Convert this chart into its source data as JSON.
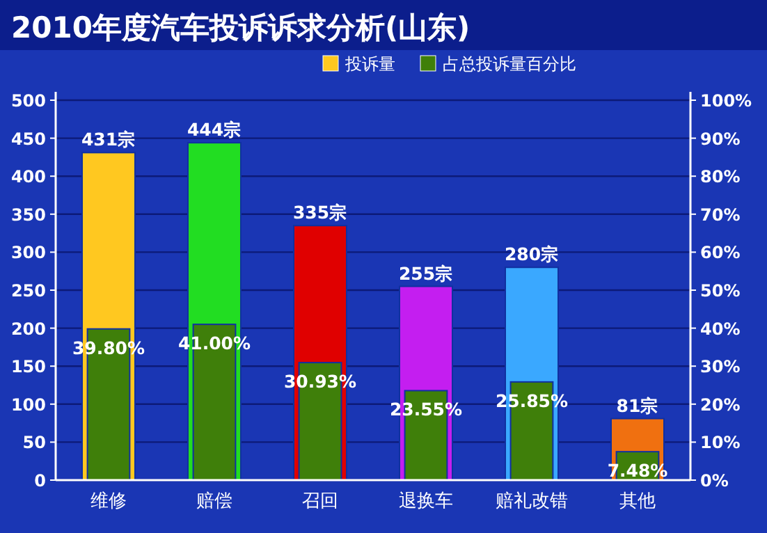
{
  "chart_data": {
    "type": "bar",
    "title": "2010年度汽车投诉诉求分析(山东)",
    "categories": [
      "维修",
      "赔偿",
      "召回",
      "退换车",
      "赔礼改错",
      "其他"
    ],
    "series": [
      {
        "name": "投诉量",
        "color": "#ffc820",
        "colors": [
          "#ffc820",
          "#22dd22",
          "#e00000",
          "#c41ef0",
          "#3aa8ff",
          "#f07010"
        ],
        "values": [
          431,
          444,
          335,
          255,
          280,
          81
        ],
        "value_labels": [
          "431宗",
          "444宗",
          "335宗",
          "255宗",
          "280宗",
          "81宗"
        ]
      },
      {
        "name": "占总投诉量百分比",
        "axis": "y2",
        "color": "#3f7f0a",
        "values": [
          39.8,
          41.0,
          30.93,
          23.55,
          25.85,
          7.48
        ],
        "value_labels": [
          "39.80%",
          "41.00%",
          "30.93%",
          "23.55%",
          "25.85%",
          "7.48%"
        ]
      }
    ],
    "ylim": [
      0,
      500
    ],
    "yticks": [
      0,
      50,
      100,
      150,
      200,
      250,
      300,
      350,
      400,
      450,
      500
    ],
    "y2lim": [
      0,
      100
    ],
    "y2ticks": [
      {
        "value": 0,
        "label": "0%"
      },
      {
        "value": 10,
        "label": "10%"
      },
      {
        "value": 20,
        "label": "20%"
      },
      {
        "value": 30,
        "label": "30%"
      },
      {
        "value": 40,
        "label": "40%"
      },
      {
        "value": 50,
        "label": "50%"
      },
      {
        "value": 60,
        "label": "60%"
      },
      {
        "value": 70,
        "label": "70%"
      },
      {
        "value": 80,
        "label": "80%"
      },
      {
        "value": 90,
        "label": "90%"
      },
      {
        "value": 100,
        "label": "100%"
      }
    ],
    "grid": "y",
    "legend": "top right"
  }
}
